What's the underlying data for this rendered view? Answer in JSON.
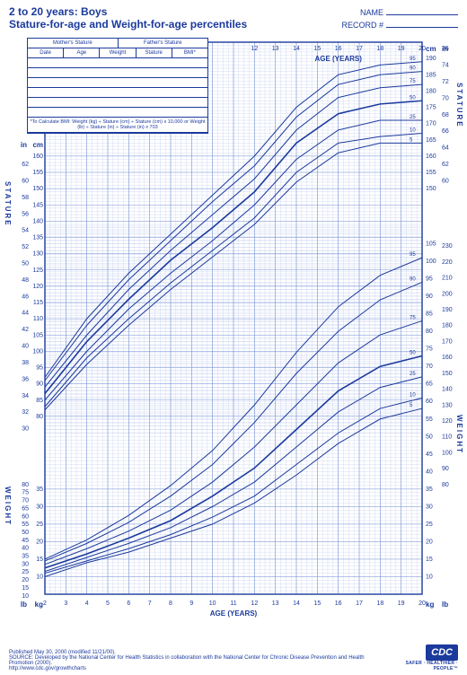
{
  "header": {
    "title1": "2 to 20 years: Boys",
    "title2": "Stature-for-age and Weight-for-age percentiles",
    "name_label": "NAME",
    "record_label": "RECORD #"
  },
  "databox": {
    "top_left": "Mother's Stature",
    "top_right": "Father's Stature",
    "cols": [
      "Date",
      "Age",
      "Weight",
      "Stature",
      "BMI*"
    ],
    "empty_rows": 6,
    "bmi_note": "*To Calculate BMI: Weight (kg) ÷ Stature (cm) ÷ Stature (cm) x 10,000 or Weight (lb) ÷ Stature (in) ÷ Stature (in) x 703"
  },
  "colors": {
    "primary": "#1b3a9c",
    "grid_light": "#b8c6ec",
    "grid_med": "#7a94d6",
    "background": "#ffffff"
  },
  "chart": {
    "age_axis_label": "AGE (YEARS)",
    "age_min": 2,
    "age_max": 20,
    "age_ticks": [
      2,
      3,
      4,
      5,
      6,
      7,
      8,
      9,
      10,
      11,
      12,
      13,
      14,
      15,
      16,
      17,
      18,
      19,
      20
    ],
    "age_top_ticks": [
      12,
      13,
      14,
      15,
      16,
      17,
      18,
      19,
      20
    ],
    "stature_in_ticks": [
      30,
      32,
      34,
      36,
      38,
      40,
      42,
      44,
      46,
      48,
      50,
      52,
      54,
      56,
      58,
      60,
      62
    ],
    "stature_cm_ticks": [
      80,
      85,
      90,
      95,
      100,
      105,
      110,
      115,
      120,
      125,
      130,
      135,
      140,
      145,
      150,
      155,
      160
    ],
    "stature_cm_right_ticks": [
      150,
      155,
      160,
      165,
      170,
      175,
      180,
      185,
      190
    ],
    "stature_in_right_ticks": [
      60,
      62,
      64,
      66,
      68,
      70,
      72,
      74,
      76
    ],
    "weight_lb_ticks": [
      10,
      15,
      20,
      25,
      30,
      35,
      40,
      45,
      50,
      55,
      60,
      65,
      70,
      75,
      80
    ],
    "weight_kg_ticks": [
      10,
      15,
      20,
      25,
      30,
      35
    ],
    "weight_kg_right_ticks": [
      10,
      15,
      20,
      25,
      30,
      35,
      40,
      45,
      50,
      55,
      60,
      65,
      70,
      75,
      80,
      85,
      90,
      95,
      100,
      105
    ],
    "weight_lb_right_ticks": [
      80,
      90,
      100,
      110,
      120,
      130,
      140,
      150,
      160,
      170,
      180,
      190,
      200,
      210,
      220,
      230
    ],
    "side_labels": {
      "stature": "STATURE",
      "weight": "WEIGHT"
    },
    "percentile_labels": [
      "5",
      "10",
      "25",
      "50",
      "75",
      "90",
      "95"
    ],
    "stature_curves": {
      "5": [
        [
          2,
          82
        ],
        [
          4,
          96
        ],
        [
          6,
          108
        ],
        [
          8,
          119
        ],
        [
          10,
          129
        ],
        [
          12,
          139
        ],
        [
          14,
          152
        ],
        [
          16,
          161
        ],
        [
          18,
          164
        ],
        [
          20,
          164
        ]
      ],
      "10": [
        [
          2,
          83
        ],
        [
          4,
          98
        ],
        [
          6,
          110
        ],
        [
          8,
          121
        ],
        [
          10,
          131
        ],
        [
          12,
          141
        ],
        [
          14,
          155
        ],
        [
          16,
          164
        ],
        [
          18,
          166
        ],
        [
          20,
          167
        ]
      ],
      "25": [
        [
          2,
          85
        ],
        [
          4,
          100
        ],
        [
          6,
          113
        ],
        [
          8,
          124
        ],
        [
          10,
          134
        ],
        [
          12,
          145
        ],
        [
          14,
          159
        ],
        [
          16,
          168
        ],
        [
          18,
          171
        ],
        [
          20,
          171
        ]
      ],
      "50": [
        [
          2,
          87
        ],
        [
          4,
          103
        ],
        [
          6,
          116
        ],
        [
          8,
          128
        ],
        [
          10,
          138
        ],
        [
          12,
          149
        ],
        [
          14,
          164
        ],
        [
          16,
          173
        ],
        [
          18,
          176
        ],
        [
          20,
          177
        ]
      ],
      "75": [
        [
          2,
          89
        ],
        [
          4,
          105
        ],
        [
          6,
          119
        ],
        [
          8,
          131
        ],
        [
          10,
          142
        ],
        [
          12,
          153
        ],
        [
          14,
          168
        ],
        [
          16,
          178
        ],
        [
          18,
          181
        ],
        [
          20,
          182
        ]
      ],
      "90": [
        [
          2,
          91
        ],
        [
          4,
          108
        ],
        [
          6,
          122
        ],
        [
          8,
          134
        ],
        [
          10,
          146
        ],
        [
          12,
          157
        ],
        [
          14,
          172
        ],
        [
          16,
          182
        ],
        [
          18,
          185
        ],
        [
          20,
          186
        ]
      ],
      "95": [
        [
          2,
          92
        ],
        [
          4,
          110
        ],
        [
          6,
          124
        ],
        [
          8,
          136
        ],
        [
          10,
          148
        ],
        [
          12,
          160
        ],
        [
          14,
          175
        ],
        [
          16,
          185
        ],
        [
          18,
          188
        ],
        [
          20,
          189
        ]
      ]
    },
    "weight_curves": {
      "5": [
        [
          2,
          10
        ],
        [
          4,
          14
        ],
        [
          6,
          17
        ],
        [
          8,
          21
        ],
        [
          10,
          25
        ],
        [
          12,
          31
        ],
        [
          14,
          39
        ],
        [
          16,
          48
        ],
        [
          18,
          55
        ],
        [
          20,
          58
        ]
      ],
      "10": [
        [
          2,
          11
        ],
        [
          4,
          14.5
        ],
        [
          6,
          18
        ],
        [
          8,
          22
        ],
        [
          10,
          27
        ],
        [
          12,
          33
        ],
        [
          14,
          42
        ],
        [
          16,
          51
        ],
        [
          18,
          58
        ],
        [
          20,
          61
        ]
      ],
      "25": [
        [
          2,
          11.5
        ],
        [
          4,
          15.5
        ],
        [
          6,
          19.5
        ],
        [
          8,
          24
        ],
        [
          10,
          30
        ],
        [
          12,
          37
        ],
        [
          14,
          47
        ],
        [
          16,
          57
        ],
        [
          18,
          64
        ],
        [
          20,
          67
        ]
      ],
      "50": [
        [
          2,
          12.5
        ],
        [
          4,
          16.5
        ],
        [
          6,
          21
        ],
        [
          8,
          26
        ],
        [
          10,
          33
        ],
        [
          12,
          41
        ],
        [
          14,
          52
        ],
        [
          16,
          63
        ],
        [
          18,
          70
        ],
        [
          20,
          73
        ]
      ],
      "75": [
        [
          2,
          13.5
        ],
        [
          4,
          18
        ],
        [
          6,
          23
        ],
        [
          8,
          29
        ],
        [
          10,
          37
        ],
        [
          12,
          47
        ],
        [
          14,
          59
        ],
        [
          16,
          71
        ],
        [
          18,
          79
        ],
        [
          20,
          83
        ]
      ],
      "90": [
        [
          2,
          14.5
        ],
        [
          4,
          19.5
        ],
        [
          6,
          25.5
        ],
        [
          8,
          33
        ],
        [
          10,
          42
        ],
        [
          12,
          54
        ],
        [
          14,
          68
        ],
        [
          16,
          80
        ],
        [
          18,
          89
        ],
        [
          20,
          94
        ]
      ],
      "95": [
        [
          2,
          15
        ],
        [
          4,
          20.5
        ],
        [
          6,
          27.5
        ],
        [
          8,
          36
        ],
        [
          10,
          46
        ],
        [
          12,
          59
        ],
        [
          14,
          74
        ],
        [
          16,
          87
        ],
        [
          18,
          96
        ],
        [
          20,
          101
        ]
      ]
    }
  },
  "footer": {
    "published": "Published May 30, 2000 (modified 11/21/00).",
    "source": "SOURCE: Developed by the National Center for Health Statistics in collaboration with the National Center for Chronic Disease Prevention and Health Promotion (2000).",
    "url": "http://www.cdc.gov/growthcharts",
    "logo": "CDC",
    "tagline": "SAFER · HEALTHIER · PEOPLE™"
  }
}
